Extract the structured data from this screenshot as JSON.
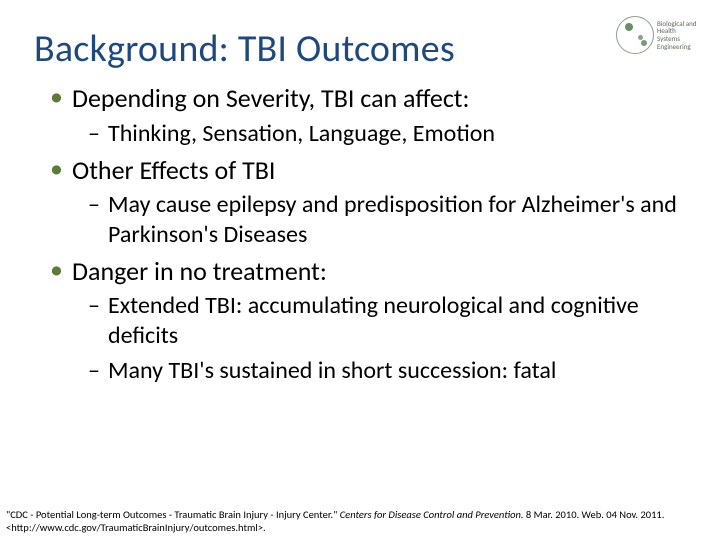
{
  "title_color": "#1f497d",
  "text_color": "#000000",
  "bullet_color": "#5c7a3a",
  "title": "Background: TBI Outcomes",
  "bullets": [
    {
      "level": 1,
      "text": "Depending on Severity, TBI can affect:"
    },
    {
      "level": 2,
      "text": "Thinking, Sensation, Language, Emotion"
    },
    {
      "level": 1,
      "text": "Other Effects of TBI"
    },
    {
      "level": 2,
      "text": "May cause epilepsy and predisposition for Alzheimer's and Parkinson's Diseases"
    },
    {
      "level": 1,
      "text": "Danger in no treatment:"
    },
    {
      "level": 2,
      "text": "Extended TBI: accumulating neurological and cognitive deficits"
    },
    {
      "level": 2,
      "text": "Many TBI's sustained in short succession: fatal"
    }
  ],
  "citation": {
    "prefix": "\"CDC - Potential Long-term Outcomes - Traumatic Brain Injury - Injury Center.\" ",
    "italic": "Centers for Disease Control and Prevention.",
    "suffix": " 8 Mar. 2010. Web. 04 Nov. 2011. <http://www.cdc.gov/TraumaticBrainInjury/outcomes.html>."
  },
  "logo": {
    "line1": "Biological and Health",
    "line2": "Systems Engineering"
  }
}
